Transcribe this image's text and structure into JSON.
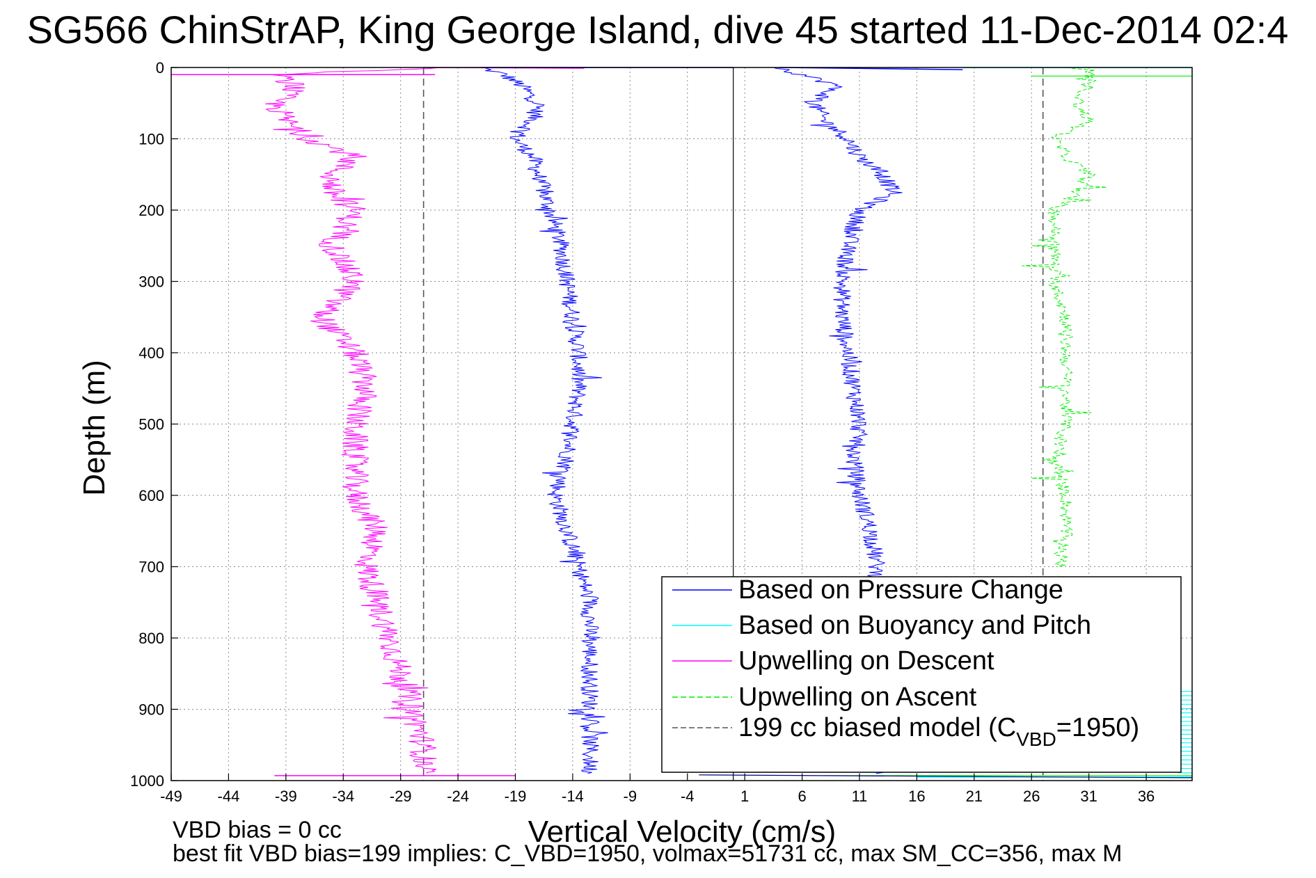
{
  "figure": {
    "title": "SG566 ChinStrAP, King George Island, dive 45 started 11-Dec-2014 02:4",
    "footer_line1": "VBD bias = 0 cc",
    "footer_line2": "best fit VBD bias=199 implies: C_VBD=1950, volmax=51731 cc, max SM_CC=356, max M"
  },
  "chart_data": {
    "type": "line",
    "title": "SG566 ChinStrAP, King George Island, dive 45 started 11-Dec-2014 02:4",
    "xlabel": "Vertical Velocity (cm/s)",
    "ylabel": "Depth (m)",
    "xlim": [
      -49,
      40
    ],
    "ylim": [
      0,
      1000
    ],
    "y_reversed": true,
    "grid": true,
    "legend_position": "bottom-right",
    "xticks": [
      -49,
      -44,
      -39,
      -34,
      -29,
      -24,
      -19,
      -14,
      -9,
      -4,
      1,
      6,
      11,
      16,
      21,
      26,
      31,
      36
    ],
    "yticks": [
      0,
      100,
      200,
      300,
      400,
      500,
      600,
      700,
      800,
      900,
      1000
    ],
    "series": [
      {
        "name": "Based on Pressure Change",
        "color": "#0000ff",
        "style": "solid",
        "depth": [
          0,
          10,
          25,
          50,
          75,
          100,
          125,
          150,
          175,
          200,
          250,
          300,
          350,
          400,
          450,
          500,
          550,
          600,
          650,
          700,
          750,
          800,
          850,
          900,
          950,
          990
        ],
        "descent_velocity": [
          -22,
          -20,
          -18.5,
          -17,
          -17.5,
          -19,
          -17.5,
          -17,
          -16.5,
          -16,
          -15,
          -14.5,
          -14,
          -13.5,
          -13.5,
          -14,
          -14.5,
          -15.5,
          -14.5,
          -13.5,
          -12.5,
          -12.5,
          -12.5,
          -12.5,
          -12.5,
          -12.5
        ],
        "ascent_velocity": [
          4,
          6,
          9,
          7,
          8,
          10,
          11,
          13,
          14,
          11,
          10,
          9.5,
          9.5,
          10,
          10.5,
          11,
          10.5,
          11,
          12,
          12.5,
          12.5,
          12.5,
          12.5,
          12.5,
          12.5,
          12.5
        ]
      },
      {
        "name": "Based on Buoyancy and Pitch",
        "color": "#00ffff",
        "style": "solid",
        "depth": [
          0,
          875,
          900,
          925,
          950,
          975,
          995
        ],
        "velocity": [
          39.5,
          39.5,
          39.5,
          39.5,
          39.5,
          39.5,
          39.5
        ]
      },
      {
        "name": "Upwelling on Descent",
        "color": "#ff00ff",
        "style": "solid",
        "depth": [
          0,
          10,
          25,
          50,
          75,
          100,
          125,
          150,
          175,
          200,
          250,
          300,
          350,
          400,
          450,
          500,
          550,
          600,
          650,
          700,
          750,
          800,
          850,
          900,
          950,
          990
        ],
        "velocity": [
          -26,
          -40,
          -38,
          -40,
          -39,
          -37,
          -33,
          -35,
          -35,
          -33,
          -35,
          -33,
          -36,
          -33,
          -32,
          -33,
          -33,
          -33,
          -31,
          -32,
          -31,
          -30,
          -29,
          -28,
          -27,
          -27
        ]
      },
      {
        "name": "Upwelling on Ascent",
        "color": "#00ee00",
        "style": "dashed",
        "depth": [
          0,
          10,
          25,
          50,
          75,
          100,
          125,
          150,
          175,
          200,
          250,
          300,
          350,
          400,
          450,
          500,
          550,
          600,
          650,
          700
        ],
        "velocity": [
          30,
          31,
          31,
          30,
          31,
          28,
          29,
          31,
          30,
          28,
          28,
          28,
          29,
          29,
          29,
          29,
          28,
          29,
          29,
          28.5
        ]
      },
      {
        "name": "199 cc biased model (C_VBD=1950)",
        "color": "#555555",
        "style": "dashed",
        "depth": [
          0,
          1000
        ],
        "velocity_descent": -27,
        "velocity_ascent": 27
      }
    ],
    "legend": [
      {
        "label": "Based on Pressure Change",
        "color": "#0000ff",
        "style": "solid"
      },
      {
        "label": "Based on Buoyancy and Pitch",
        "color": "#00ffff",
        "style": "solid"
      },
      {
        "label": "Upwelling on Descent",
        "color": "#ff00ff",
        "style": "solid"
      },
      {
        "label": "Upwelling on Ascent",
        "color": "#00ee00",
        "style": "dashed"
      },
      {
        "label_main": "199 cc biased model (C",
        "label_sub": "VBD",
        "label_end": "=1950)",
        "color": "#555555",
        "style": "dashed"
      }
    ]
  }
}
